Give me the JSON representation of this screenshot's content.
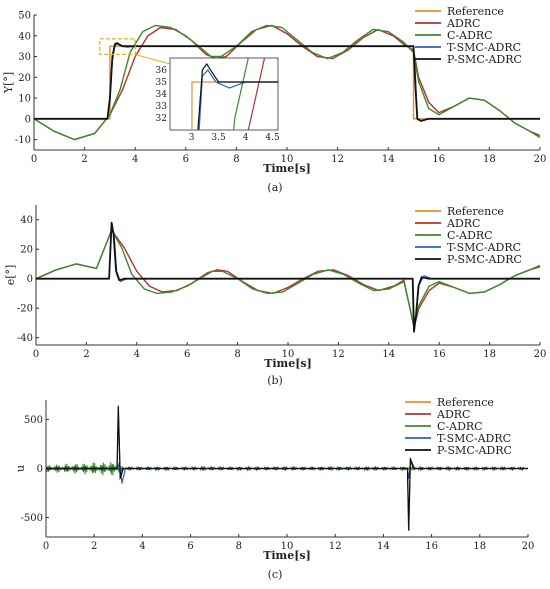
{
  "figure": {
    "captions": [
      "(a)",
      "(b)",
      "(c)"
    ],
    "colors": {
      "Reference": "#E8912A",
      "ADRC": "#B5322E",
      "C-ADRC": "#3C8A2E",
      "T-SMC-ADRC": "#2C5FC8",
      "P-SMC-ADRC": "#111111",
      "highlight": "#E0B020"
    }
  },
  "chart_data": [
    {
      "type": "line",
      "panel": "a",
      "xlabel": "Time[s]",
      "ylabel": "Y[°]",
      "xlim": [
        0,
        20
      ],
      "ylim": [
        -15,
        50
      ],
      "xticks": [
        0,
        2,
        4,
        6,
        8,
        10,
        12,
        14,
        16,
        18,
        20
      ],
      "yticks": [
        -10,
        0,
        10,
        20,
        30,
        40,
        50
      ],
      "legend": [
        "Reference",
        "ADRC",
        "C-ADRC",
        "T-SMC-ADRC",
        "P-SMC-ADRC"
      ],
      "legend_position": "top-right",
      "series": [
        {
          "name": "Reference",
          "x": [
            0,
            3,
            3,
            15,
            15,
            20
          ],
          "y": [
            0,
            0,
            35,
            35,
            0,
            0
          ]
        },
        {
          "name": "ADRC",
          "x": [
            0,
            0.8,
            1.6,
            2.4,
            3.0,
            3.5,
            4.0,
            4.5,
            5.0,
            5.6,
            6.2,
            6.8,
            7.2,
            7.6,
            8.2,
            8.8,
            9.4,
            10.0,
            10.6,
            11.2,
            11.8,
            12.4,
            13.0,
            13.6,
            14.2,
            14.6,
            15.0,
            15.2,
            15.6,
            16.0,
            16.6,
            17.2,
            17.8,
            18.4,
            19.0,
            19.6,
            20
          ],
          "y": [
            0,
            -6,
            -10,
            -7,
            2,
            14,
            30,
            40,
            44,
            43,
            38,
            31,
            29,
            30,
            37,
            43,
            45,
            41,
            35,
            30,
            29,
            33,
            39,
            43,
            40,
            36,
            33,
            20,
            8,
            3,
            6,
            10,
            9,
            4,
            -2,
            -6,
            -8
          ]
        },
        {
          "name": "C-ADRC",
          "x": [
            0,
            0.8,
            1.6,
            2.4,
            3.0,
            3.4,
            3.8,
            4.3,
            4.8,
            5.4,
            6.0,
            6.6,
            7.0,
            7.4,
            8.0,
            8.6,
            9.2,
            9.8,
            10.4,
            11.0,
            11.6,
            12.2,
            12.8,
            13.4,
            14.0,
            14.6,
            15.0,
            15.2,
            15.6,
            16.0,
            16.6,
            17.2,
            17.8,
            18.4,
            19.0,
            19.6,
            20
          ],
          "y": [
            0,
            -6,
            -10,
            -7,
            2,
            14,
            32,
            42,
            45,
            44,
            40,
            34,
            30,
            30,
            35,
            42,
            45,
            44,
            38,
            32,
            29,
            32,
            38,
            43,
            42,
            37,
            32,
            18,
            5,
            2,
            6,
            10,
            9,
            4,
            -2,
            -6,
            -9
          ]
        },
        {
          "name": "T-SMC-ADRC",
          "x": [
            0,
            2.9,
            3.0,
            3.1,
            3.2,
            3.3,
            3.45,
            3.7,
            4.0,
            15.0,
            15.08,
            15.15,
            15.3,
            15.6,
            20
          ],
          "y": [
            0,
            0,
            8,
            28,
            35.5,
            36,
            35,
            34.5,
            35,
            35,
            20,
            0,
            -1,
            0,
            0
          ]
        },
        {
          "name": "P-SMC-ADRC",
          "x": [
            0,
            2.9,
            3.0,
            3.1,
            3.2,
            3.28,
            3.35,
            3.5,
            4.0,
            15.0,
            15.08,
            15.15,
            15.3,
            15.6,
            20
          ],
          "y": [
            0,
            0,
            10,
            30,
            36,
            36.5,
            36,
            35,
            35,
            35,
            15,
            0,
            -1,
            0,
            0
          ]
        }
      ],
      "inset": {
        "xlim": [
          2.6,
          4.6
        ],
        "ylim": [
          31,
          37
        ],
        "xticks": [
          3,
          3.5,
          4,
          4.5
        ],
        "yticks": [
          32,
          33,
          34,
          35,
          36
        ]
      }
    },
    {
      "type": "line",
      "panel": "b",
      "xlabel": "Time[s]",
      "ylabel": "e[°]",
      "xlim": [
        0,
        20
      ],
      "ylim": [
        -45,
        50
      ],
      "xticks": [
        0,
        2,
        4,
        6,
        8,
        10,
        12,
        14,
        16,
        18,
        20
      ],
      "yticks": [
        -40,
        -20,
        0,
        20,
        40
      ],
      "legend": [
        "Reference",
        "ADRC",
        "C-ADRC",
        "T-SMC-ADRC",
        "P-SMC-ADRC"
      ],
      "legend_position": "top-right",
      "series": [
        {
          "name": "ADRC",
          "x": [
            0,
            0.8,
            1.6,
            2.4,
            3.0,
            3.5,
            4.0,
            4.5,
            5.0,
            5.6,
            6.2,
            6.8,
            7.2,
            7.6,
            8.2,
            8.8,
            9.4,
            10.0,
            10.6,
            11.2,
            11.8,
            12.4,
            13.0,
            13.6,
            14.2,
            14.6,
            15.0,
            15.2,
            15.6,
            16.0,
            16.6,
            17.2,
            17.8,
            18.4,
            19.0,
            19.6,
            20
          ],
          "y": [
            0,
            6,
            10,
            7,
            33,
            21,
            5,
            -5,
            -9,
            -8,
            -3,
            4,
            6,
            5,
            -2,
            -8,
            -10,
            -6,
            0,
            5,
            6,
            2,
            -4,
            -8,
            -5,
            -1,
            -33,
            -20,
            -8,
            -3,
            -6,
            -10,
            -9,
            -4,
            2,
            6,
            8
          ]
        },
        {
          "name": "C-ADRC",
          "x": [
            0,
            0.8,
            1.6,
            2.4,
            3.0,
            3.4,
            3.8,
            4.3,
            4.8,
            5.4,
            6.0,
            6.6,
            7.0,
            7.4,
            8.0,
            8.6,
            9.2,
            9.8,
            10.4,
            11.0,
            11.6,
            12.2,
            12.8,
            13.4,
            14.0,
            14.6,
            15.0,
            15.2,
            15.6,
            16.0,
            16.6,
            17.2,
            17.8,
            18.4,
            19.0,
            19.6,
            20
          ],
          "y": [
            0,
            6,
            10,
            7,
            33,
            21,
            3,
            -7,
            -10,
            -9,
            -5,
            1,
            5,
            5,
            0,
            -7,
            -10,
            -9,
            -3,
            3,
            6,
            3,
            -3,
            -8,
            -7,
            -2,
            -32,
            -18,
            -5,
            -2,
            -6,
            -10,
            -9,
            -4,
            2,
            6,
            9
          ]
        },
        {
          "name": "T-SMC-ADRC",
          "x": [
            0,
            2.9,
            3.0,
            3.1,
            3.2,
            3.35,
            3.6,
            4.0,
            14.95,
            15.0,
            15.1,
            15.2,
            15.4,
            15.7,
            20
          ],
          "y": [
            0,
            0,
            36,
            30,
            5,
            -2,
            0,
            0,
            0,
            -34,
            -22,
            -4,
            2,
            0,
            0
          ]
        },
        {
          "name": "P-SMC-ADRC",
          "x": [
            0,
            2.9,
            3.0,
            3.08,
            3.18,
            3.3,
            3.5,
            4.0,
            14.95,
            15.0,
            15.08,
            15.18,
            15.3,
            15.6,
            20
          ],
          "y": [
            0,
            0,
            38,
            30,
            5,
            -1,
            0,
            0,
            0,
            -36,
            -25,
            -5,
            1,
            0,
            0
          ]
        }
      ]
    },
    {
      "type": "line",
      "panel": "c",
      "xlabel": "Time[s]",
      "ylabel": "u",
      "xlim": [
        0,
        20
      ],
      "ylim": [
        -700,
        700
      ],
      "xticks": [
        0,
        2,
        4,
        6,
        8,
        10,
        12,
        14,
        16,
        18,
        20
      ],
      "yticks": [
        -500,
        0,
        500
      ],
      "legend": [
        "Reference",
        "ADRC",
        "C-ADRC",
        "T-SMC-ADRC",
        "P-SMC-ADRC"
      ],
      "legend_position": "top-right",
      "series": [
        {
          "name": "C-ADRC",
          "x": [
            0,
            3,
            3.1,
            15,
            15.1,
            20
          ],
          "y": [
            0,
            0,
            0,
            0,
            0,
            0
          ],
          "amplitude": [
            40,
            80,
            20,
            20,
            20,
            15
          ]
        },
        {
          "name": "T-SMC-ADRC",
          "x": [
            0,
            2.95,
            3.05,
            3.15,
            3.3,
            15.0,
            15.05,
            15.15,
            15.3,
            20
          ],
          "y": [
            0,
            0,
            60,
            -150,
            0,
            0,
            -100,
            80,
            0,
            0
          ]
        },
        {
          "name": "P-SMC-ADRC",
          "x": [
            0,
            2.95,
            3.0,
            3.08,
            3.2,
            15.0,
            15.05,
            15.12,
            15.25,
            20
          ],
          "y": [
            0,
            0,
            640,
            -100,
            0,
            0,
            -640,
            100,
            0,
            0
          ],
          "amplitude": [
            10,
            10,
            10,
            10,
            10,
            10,
            10,
            10,
            10,
            10
          ]
        }
      ]
    }
  ]
}
